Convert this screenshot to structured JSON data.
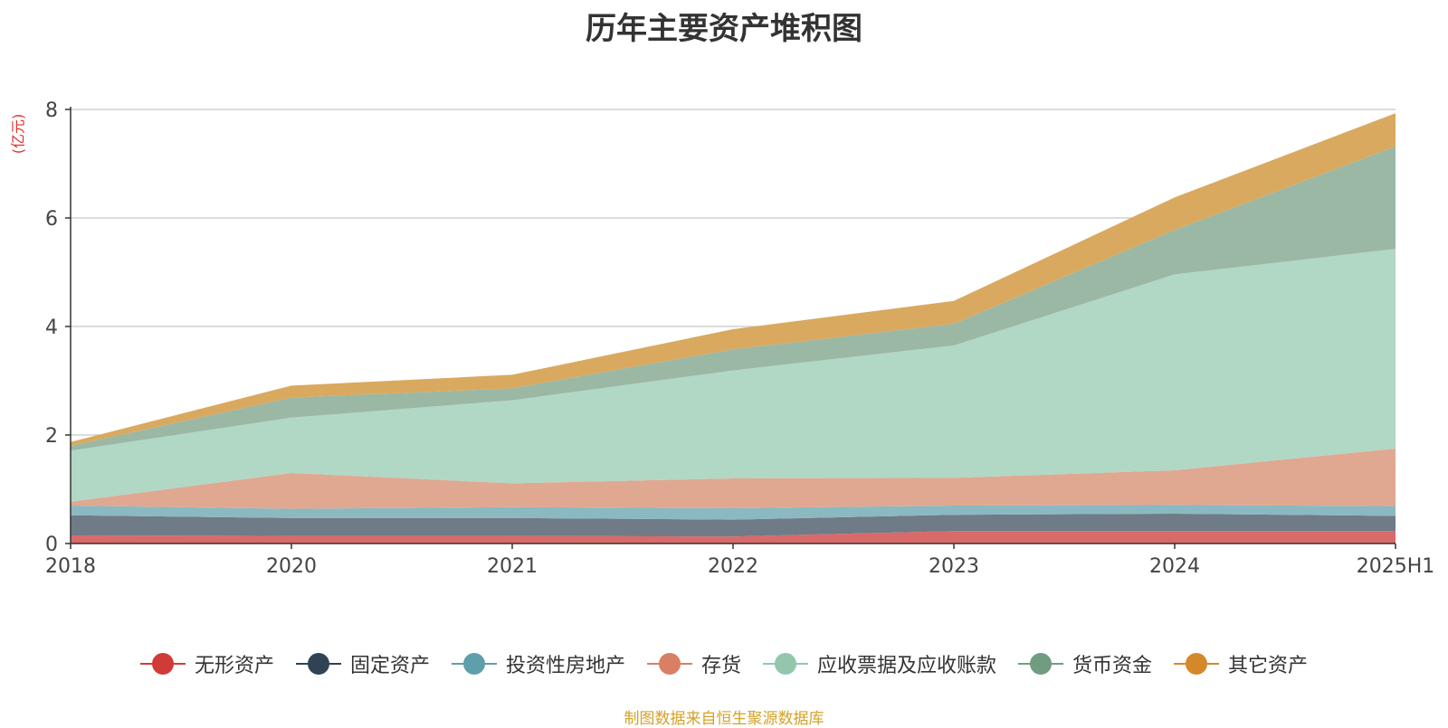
{
  "chart_data": {
    "type": "area",
    "title": "历年主要资产堆积图",
    "ylabel": "(亿元)",
    "xlabel": "",
    "categories": [
      "2018",
      "2020",
      "2021",
      "2022",
      "2023",
      "2024",
      "2025H1"
    ],
    "ylim": [
      0,
      8
    ],
    "yticks": [
      "0",
      "2",
      "4",
      "6",
      "8"
    ],
    "grid": true,
    "legend_position": "bottom",
    "stacked": true,
    "series": [
      {
        "name": "无形资产",
        "color": "#d03b38",
        "fill": "#d96a6a",
        "values": [
          0.15,
          0.14,
          0.14,
          0.13,
          0.23,
          0.23,
          0.23
        ]
      },
      {
        "name": "固定资产",
        "color": "#2f4354",
        "fill": "#6f7b86",
        "values": [
          0.37,
          0.33,
          0.33,
          0.31,
          0.3,
          0.32,
          0.28
        ]
      },
      {
        "name": "投资性房地产",
        "color": "#5f9fab",
        "fill": "#8ab9c1",
        "values": [
          0.18,
          0.17,
          0.2,
          0.21,
          0.17,
          0.16,
          0.18
        ]
      },
      {
        "name": "存货",
        "color": "#d97f63",
        "fill": "#e0a891",
        "values": [
          0.07,
          0.66,
          0.44,
          0.55,
          0.51,
          0.64,
          1.06
        ]
      },
      {
        "name": "应收票据及应收账款",
        "color": "#92c7ac",
        "fill": "#b1d7c5",
        "values": [
          0.94,
          1.02,
          1.53,
          1.99,
          2.44,
          3.61,
          3.68
        ]
      },
      {
        "name": "货币资金",
        "color": "#729c80",
        "fill": "#9bb8a5",
        "values": [
          0.09,
          0.37,
          0.22,
          0.39,
          0.4,
          0.82,
          1.89
        ]
      },
      {
        "name": "其它资产",
        "color": "#d4882a",
        "fill": "#d9a95f",
        "values": [
          0.07,
          0.22,
          0.25,
          0.37,
          0.42,
          0.6,
          0.61
        ]
      }
    ]
  },
  "source_note": "制图数据来自恒生聚源数据库"
}
